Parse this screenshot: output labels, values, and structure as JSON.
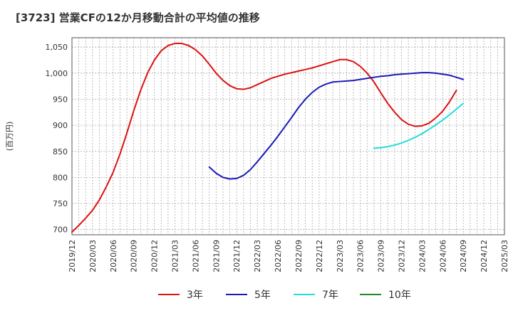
{
  "chart_data": {
    "type": "line",
    "title": "[3723]  営業CFの12か月移動合計の平均値の推移",
    "ylabel": "(百万円)",
    "xlabel": "",
    "ylim": [
      690,
      1068
    ],
    "yticks": [
      700,
      750,
      800,
      850,
      900,
      950,
      1000,
      1050
    ],
    "ytick_labels": [
      "700",
      "750",
      "800",
      "850",
      "900",
      "950",
      "1,000",
      "1,050"
    ],
    "x_start": "2019/12",
    "x_end": "2025/03",
    "x_tick_labels": [
      "2019/12",
      "2020/03",
      "2020/06",
      "2020/09",
      "2020/12",
      "2021/03",
      "2021/06",
      "2021/09",
      "2021/12",
      "2022/03",
      "2022/06",
      "2022/09",
      "2022/12",
      "2023/03",
      "2023/06",
      "2023/09",
      "2023/12",
      "2024/03",
      "2024/06",
      "2024/09",
      "2024/12",
      "2025/03"
    ],
    "grid": true,
    "legend_position": "bottom",
    "series": [
      {
        "name": "3年",
        "color": "#dd1111",
        "points": [
          [
            "2019/12",
            695
          ],
          [
            "2020/01",
            708
          ],
          [
            "2020/02",
            722
          ],
          [
            "2020/03",
            737
          ],
          [
            "2020/04",
            757
          ],
          [
            "2020/05",
            782
          ],
          [
            "2020/06",
            810
          ],
          [
            "2020/07",
            845
          ],
          [
            "2020/08",
            885
          ],
          [
            "2020/09",
            928
          ],
          [
            "2020/10",
            967
          ],
          [
            "2020/11",
            1000
          ],
          [
            "2020/12",
            1025
          ],
          [
            "2021/01",
            1043
          ],
          [
            "2021/02",
            1053
          ],
          [
            "2021/03",
            1057
          ],
          [
            "2021/04",
            1057
          ],
          [
            "2021/05",
            1053
          ],
          [
            "2021/06",
            1045
          ],
          [
            "2021/07",
            1033
          ],
          [
            "2021/08",
            1017
          ],
          [
            "2021/09",
            1000
          ],
          [
            "2021/10",
            986
          ],
          [
            "2021/11",
            976
          ],
          [
            "2021/12",
            970
          ],
          [
            "2022/01",
            969
          ],
          [
            "2022/02",
            972
          ],
          [
            "2022/03",
            978
          ],
          [
            "2022/04",
            984
          ],
          [
            "2022/05",
            990
          ],
          [
            "2022/06",
            994
          ],
          [
            "2022/07",
            998
          ],
          [
            "2022/08",
            1001
          ],
          [
            "2022/09",
            1004
          ],
          [
            "2022/10",
            1007
          ],
          [
            "2022/11",
            1010
          ],
          [
            "2022/12",
            1014
          ],
          [
            "2023/01",
            1018
          ],
          [
            "2023/02",
            1022
          ],
          [
            "2023/03",
            1026
          ],
          [
            "2023/04",
            1026
          ],
          [
            "2023/05",
            1022
          ],
          [
            "2023/06",
            1013
          ],
          [
            "2023/07",
            1000
          ],
          [
            "2023/08",
            983
          ],
          [
            "2023/09",
            962
          ],
          [
            "2023/10",
            942
          ],
          [
            "2023/11",
            925
          ],
          [
            "2023/12",
            911
          ],
          [
            "2024/01",
            902
          ],
          [
            "2024/02",
            898
          ],
          [
            "2024/03",
            899
          ],
          [
            "2024/04",
            904
          ],
          [
            "2024/05",
            914
          ],
          [
            "2024/06",
            927
          ],
          [
            "2024/07",
            945
          ],
          [
            "2024/08",
            967
          ]
        ]
      },
      {
        "name": "5年",
        "color": "#1a1ab8",
        "points": [
          [
            "2021/08",
            820
          ],
          [
            "2021/09",
            808
          ],
          [
            "2021/10",
            800
          ],
          [
            "2021/11",
            797
          ],
          [
            "2021/12",
            798
          ],
          [
            "2022/01",
            804
          ],
          [
            "2022/02",
            815
          ],
          [
            "2022/03",
            830
          ],
          [
            "2022/04",
            846
          ],
          [
            "2022/05",
            862
          ],
          [
            "2022/06",
            879
          ],
          [
            "2022/07",
            897
          ],
          [
            "2022/08",
            915
          ],
          [
            "2022/09",
            934
          ],
          [
            "2022/10",
            950
          ],
          [
            "2022/11",
            963
          ],
          [
            "2022/12",
            973
          ],
          [
            "2023/01",
            979
          ],
          [
            "2023/02",
            983
          ],
          [
            "2023/03",
            984
          ],
          [
            "2023/04",
            985
          ],
          [
            "2023/05",
            986
          ],
          [
            "2023/06",
            988
          ],
          [
            "2023/07",
            990
          ],
          [
            "2023/08",
            992
          ],
          [
            "2023/09",
            994
          ],
          [
            "2023/10",
            995
          ],
          [
            "2023/11",
            997
          ],
          [
            "2023/12",
            998
          ],
          [
            "2024/01",
            999
          ],
          [
            "2024/02",
            1000
          ],
          [
            "2024/03",
            1001
          ],
          [
            "2024/04",
            1001
          ],
          [
            "2024/05",
            1000
          ],
          [
            "2024/06",
            998
          ],
          [
            "2024/07",
            996
          ],
          [
            "2024/08",
            992
          ],
          [
            "2024/09",
            988
          ]
        ]
      },
      {
        "name": "7年",
        "color": "#22dddd",
        "points": [
          [
            "2023/08",
            856
          ],
          [
            "2023/09",
            857
          ],
          [
            "2023/10",
            859
          ],
          [
            "2023/11",
            862
          ],
          [
            "2023/12",
            866
          ],
          [
            "2024/01",
            871
          ],
          [
            "2024/02",
            877
          ],
          [
            "2024/03",
            884
          ],
          [
            "2024/04",
            892
          ],
          [
            "2024/05",
            901
          ],
          [
            "2024/06",
            910
          ],
          [
            "2024/07",
            920
          ],
          [
            "2024/08",
            931
          ],
          [
            "2024/09",
            942
          ]
        ]
      },
      {
        "name": "10年",
        "color": "#228822",
        "points": []
      }
    ]
  }
}
